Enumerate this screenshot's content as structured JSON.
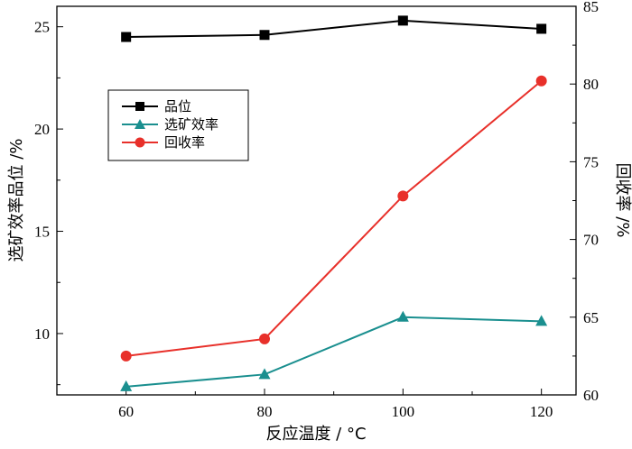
{
  "chart_data": {
    "type": "line",
    "x": [
      60,
      80,
      100,
      120
    ],
    "xlabel": "反应温度 / °C",
    "xlim": [
      50,
      125
    ],
    "xticks": [
      60,
      80,
      100,
      120
    ],
    "ylabel_left": "选矿效率品位 /%",
    "ylim_left": [
      7,
      26
    ],
    "yticks_left": [
      10,
      15,
      20,
      25
    ],
    "ylabel_right": "回收率 /%",
    "ylim_right": [
      60,
      85
    ],
    "yticks_right": [
      60,
      65,
      70,
      75,
      80,
      85
    ],
    "legend_position": "upper-left",
    "grid": false,
    "series": [
      {
        "name": "品位",
        "axis": "left",
        "marker": "square",
        "color": "#000000",
        "values": [
          24.5,
          24.6,
          25.3,
          24.9
        ]
      },
      {
        "name": "选矿效率",
        "axis": "left",
        "marker": "triangle",
        "color": "#1a8f8f",
        "values": [
          7.4,
          8.0,
          10.8,
          10.6
        ]
      },
      {
        "name": "回收率",
        "axis": "right",
        "marker": "circle",
        "color": "#e8302a",
        "values": [
          62.5,
          63.6,
          72.8,
          80.2
        ]
      }
    ]
  }
}
